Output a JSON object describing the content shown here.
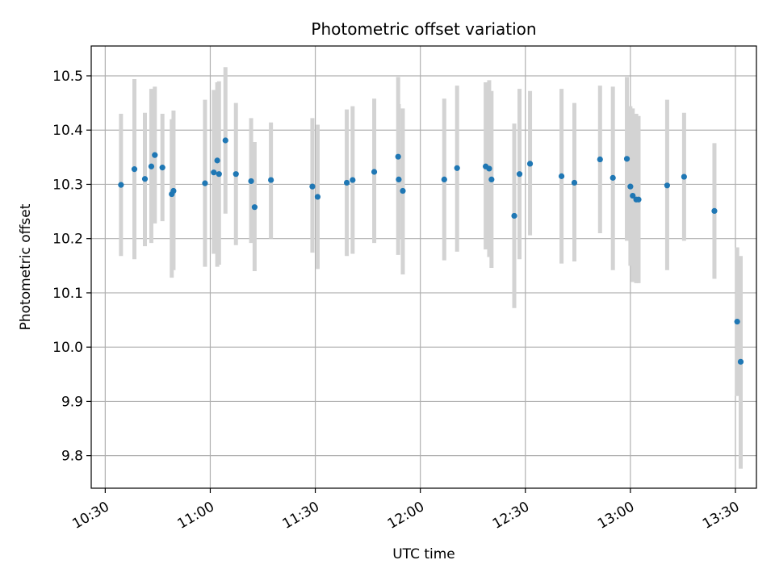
{
  "chart_data": {
    "type": "scatter",
    "title": "Photometric offset variation",
    "xlabel": "UTC time",
    "ylabel": "Photometric offset",
    "x_axis": {
      "unit": "time",
      "range": [
        "10:26",
        "13:36"
      ],
      "ticks": [
        "10:30",
        "11:00",
        "11:30",
        "12:00",
        "12:30",
        "13:00",
        "13:30"
      ]
    },
    "y_axis": {
      "range": [
        9.74,
        10.555
      ],
      "ticks": [
        "9.8",
        "9.9",
        "10.0",
        "10.1",
        "10.2",
        "10.3",
        "10.4",
        "10.5"
      ]
    },
    "grid": true,
    "colors": {
      "points": "#1f77b4",
      "error_bars": "#d3d3d3",
      "grid": "#b0b0b0"
    },
    "series": [
      {
        "x": [
          "10:34:30",
          "10:38:20",
          "10:41:20",
          "10:43:10",
          "10:44:10",
          "10:46:20",
          "10:49:00",
          "10:49:30",
          "10:58:30",
          "11:01:00",
          "11:02:00",
          "11:02:30",
          "11:04:20",
          "11:07:20",
          "11:11:40",
          "11:12:40",
          "11:17:20",
          "11:29:10",
          "11:30:40",
          "11:39:00",
          "11:40:40",
          "11:46:50",
          "11:53:40",
          "11:53:50",
          "11:55:00",
          "12:06:50",
          "12:10:30",
          "12:18:40",
          "12:19:40",
          "12:20:20",
          "12:26:50",
          "12:28:20",
          "12:31:20",
          "12:40:20",
          "12:44:00",
          "12:51:20",
          "12:55:00",
          "12:59:00",
          "13:00:00",
          "13:00:40",
          "13:01:40",
          "13:02:20",
          "13:10:30",
          "13:15:20",
          "13:24:00",
          "13:30:30",
          "13:31:30"
        ],
        "y": [
          10.299,
          10.328,
          10.31,
          10.333,
          10.354,
          10.331,
          10.282,
          10.288,
          10.302,
          10.322,
          10.344,
          10.319,
          10.381,
          10.319,
          10.306,
          10.258,
          10.308,
          10.296,
          10.277,
          10.303,
          10.308,
          10.323,
          10.351,
          10.309,
          10.288,
          10.309,
          10.33,
          10.333,
          10.329,
          10.309,
          10.242,
          10.319,
          10.338,
          10.315,
          10.303,
          10.346,
          10.312,
          10.347,
          10.296,
          10.279,
          10.272,
          10.272,
          10.298,
          10.314,
          10.251,
          10.047,
          9.973
        ],
        "y_low": [
          10.168,
          10.162,
          10.186,
          10.192,
          10.228,
          10.232,
          10.128,
          10.142,
          10.148,
          10.172,
          10.148,
          10.152,
          10.246,
          10.188,
          10.192,
          10.14,
          10.2,
          10.174,
          10.144,
          10.168,
          10.172,
          10.192,
          10.17,
          10.2,
          10.134,
          10.16,
          10.176,
          10.18,
          10.166,
          10.146,
          10.072,
          10.162,
          10.206,
          10.154,
          10.158,
          10.21,
          10.142,
          10.196,
          10.15,
          10.12,
          10.118,
          10.118,
          10.142,
          10.196,
          10.126,
          9.91,
          9.776
        ],
        "y_high": [
          10.43,
          10.494,
          10.432,
          10.476,
          10.48,
          10.43,
          10.42,
          10.436,
          10.456,
          10.474,
          10.488,
          10.49,
          10.516,
          10.45,
          10.422,
          10.378,
          10.414,
          10.422,
          10.41,
          10.438,
          10.444,
          10.458,
          10.498,
          10.448,
          10.44,
          10.458,
          10.482,
          10.488,
          10.492,
          10.472,
          10.412,
          10.476,
          10.472,
          10.476,
          10.45,
          10.482,
          10.48,
          10.498,
          10.444,
          10.44,
          10.43,
          10.426,
          10.456,
          10.432,
          10.376,
          10.184,
          10.168
        ]
      }
    ]
  }
}
